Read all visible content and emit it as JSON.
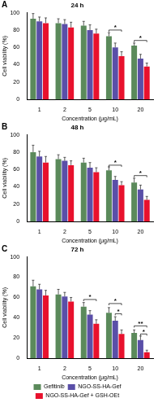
{
  "chart_data": [
    {
      "type": "bar",
      "panel": "A",
      "title": "24 h",
      "x_label": "Concentration (μg/mL)",
      "y_label": "Cell viability (%)",
      "categories": [
        "1",
        "2",
        "5",
        "10",
        "20"
      ],
      "series": [
        {
          "name": "Gefitinib",
          "color": "#5b8a5b",
          "values": [
            93,
            88,
            85,
            73,
            62
          ],
          "errors": [
            6,
            5,
            5,
            4,
            3
          ]
        },
        {
          "name": "NGO-SS-HA-Gef",
          "color": "#5a4fa8",
          "values": [
            90,
            87,
            80,
            60,
            47
          ],
          "errors": [
            5,
            5,
            6,
            5,
            5
          ]
        },
        {
          "name": "NGO-SS-HA-Gef + GSH-OEt",
          "color": "#e8112d",
          "values": [
            88,
            83,
            76,
            50,
            38
          ],
          "errors": [
            6,
            6,
            5,
            5,
            4
          ]
        }
      ],
      "ylim": [
        0,
        100
      ],
      "yticks": [
        0,
        20,
        40,
        60,
        80,
        100
      ],
      "grid": false,
      "annotations": [
        {
          "text": "*",
          "category": "10",
          "from": "Gefitinib",
          "to": "NGO-SS-HA-Gef + GSH-OEt",
          "y": 80
        },
        {
          "text": "*",
          "category": "20",
          "from": "Gefitinib",
          "to": "NGO-SS-HA-Gef + GSH-OEt",
          "y": 68
        }
      ]
    },
    {
      "type": "bar",
      "panel": "B",
      "title": "48 h",
      "x_label": "Concentration (μg/mL)",
      "y_label": "Cell viability (%)",
      "categories": [
        "1",
        "2",
        "5",
        "10",
        "20"
      ],
      "series": [
        {
          "name": "Gefitinib",
          "color": "#5b8a5b",
          "values": [
            80,
            72,
            68,
            59,
            45
          ],
          "errors": [
            8,
            5,
            5,
            4,
            5
          ]
        },
        {
          "name": "NGO-SS-HA-Gef",
          "color": "#5a4fa8",
          "values": [
            75,
            70,
            62,
            48,
            37
          ],
          "errors": [
            6,
            4,
            6,
            4,
            5
          ]
        },
        {
          "name": "NGO-SS-HA-Gef + GSH-OEt",
          "color": "#e8112d",
          "values": [
            68,
            65,
            57,
            42,
            25
          ],
          "errors": [
            7,
            5,
            5,
            4,
            4
          ]
        }
      ],
      "ylim": [
        0,
        100
      ],
      "yticks": [
        0,
        20,
        40,
        60,
        80,
        100
      ],
      "grid": false,
      "annotations": [
        {
          "text": "*",
          "category": "10",
          "from": "Gefitinib",
          "to": "NGO-SS-HA-Gef + GSH-OEt",
          "y": 65
        },
        {
          "text": "*",
          "category": "20",
          "from": "Gefitinib",
          "to": "NGO-SS-HA-Gef + GSH-OEt",
          "y": 53
        }
      ]
    },
    {
      "type": "bar",
      "panel": "C",
      "title": "72 h",
      "x_label": "Concentration (μg/mL)",
      "y_label": "Cell viability (%)",
      "categories": [
        "1",
        "2",
        "5",
        "10",
        "20"
      ],
      "series": [
        {
          "name": "Gefitinib",
          "color": "#5b8a5b",
          "values": [
            71,
            63,
            51,
            45,
            25
          ],
          "errors": [
            6,
            5,
            4,
            5,
            3
          ]
        },
        {
          "name": "NGO-SS-HA-Gef",
          "color": "#5a4fa8",
          "values": [
            68,
            61,
            43,
            37,
            18
          ],
          "errors": [
            5,
            4,
            4,
            4,
            4
          ]
        },
        {
          "name": "NGO-SS-HA-Gef + GSH-OEt",
          "color": "#e8112d",
          "values": [
            62,
            56,
            34,
            24,
            6
          ],
          "errors": [
            5,
            4,
            4,
            4,
            2
          ]
        }
      ],
      "ylim": [
        0,
        100
      ],
      "yticks": [
        0,
        20,
        40,
        60,
        80,
        100
      ],
      "grid": false,
      "legend": "bottom",
      "annotations": [
        {
          "text": "*",
          "category": "5",
          "from": "Gefitinib",
          "to": "NGO-SS-HA-Gef + GSH-OEt",
          "y": 58
        },
        {
          "text": "*",
          "category": "10",
          "from": "Gefitinib",
          "to": "NGO-SS-HA-Gef + GSH-OEt",
          "y": 54
        },
        {
          "text": "*",
          "category": "10",
          "from": "NGO-SS-HA-Gef",
          "to": "NGO-SS-HA-Gef + GSH-OEt",
          "y": 44
        },
        {
          "text": "**",
          "category": "20",
          "from": "Gefitinib",
          "to": "NGO-SS-HA-Gef + GSH-OEt",
          "y": 32
        },
        {
          "text": "*",
          "category": "20",
          "from": "NGO-SS-HA-Gef",
          "to": "NGO-SS-HA-Gef + GSH-OEt",
          "y": 24
        }
      ]
    }
  ]
}
